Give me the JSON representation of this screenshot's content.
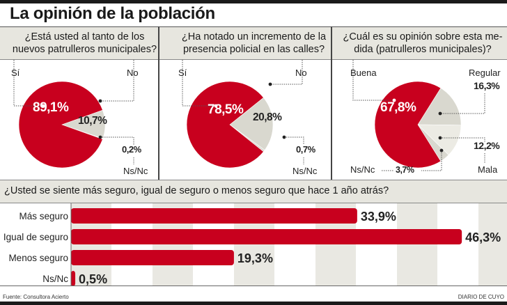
{
  "title": "La opinión de la población",
  "colors": {
    "red": "#c8001e",
    "gray": "#d9d8cf",
    "lightgray": "#ecebe4",
    "header_bg": "#e7e6df",
    "stripe": "#e9e8e2"
  },
  "chart_data": [
    {
      "type": "pie",
      "title": "¿Está usted al tanto de los nuevos patrulleros municipales?",
      "title_lines": [
        "¿Está usted al tanto de los",
        "nuevos patrulleros municipales?"
      ],
      "slices": [
        {
          "label": "Sí",
          "value": 89.1,
          "display": "89,1%"
        },
        {
          "label": "No",
          "value": 10.7,
          "display": "10,7%"
        },
        {
          "label": "Ns/Nc",
          "value": 0.2,
          "display": "0,2%"
        }
      ]
    },
    {
      "type": "pie",
      "title": "¿Ha notado un incremento de la presencia policial en las calles?",
      "title_lines": [
        "¿Ha notado un incremento de la",
        "presencia policial en las calles?"
      ],
      "slices": [
        {
          "label": "Sí",
          "value": 78.5,
          "display": "78,5%"
        },
        {
          "label": "No",
          "value": 20.8,
          "display": "20,8%"
        },
        {
          "label": "Ns/Nc",
          "value": 0.7,
          "display": "0,7%"
        }
      ]
    },
    {
      "type": "pie",
      "title": "¿Cuál es su opinión sobre esta medida (patrulleros municipales)?",
      "title_lines": [
        "¿Cuál es su opinión sobre esta me-",
        "dida (patrulleros municipales)?"
      ],
      "slices": [
        {
          "label": "Buena",
          "value": 67.8,
          "display": "67,8%"
        },
        {
          "label": "Regular",
          "value": 16.3,
          "display": "16,3%"
        },
        {
          "label": "Mala",
          "value": 12.2,
          "display": "12,2%"
        },
        {
          "label": "Ns/Nc",
          "value": 3.7,
          "display": "3,7%"
        }
      ]
    },
    {
      "type": "bar",
      "orientation": "horizontal",
      "title": "¿Usted se siente más seguro, igual de seguro o menos seguro que hace 1 año atrás?",
      "categories": [
        "Más seguro",
        "Igual de seguro",
        "Menos seguro",
        "Ns/Nc"
      ],
      "values": [
        33.9,
        46.3,
        19.3,
        0.5
      ],
      "display": [
        "33,9%",
        "46,3%",
        "19,3%",
        "0,5%"
      ],
      "xlim": [
        0,
        50
      ],
      "grid": "alternating vertical bands"
    }
  ],
  "footer": {
    "source": "Fuente: Consultora  Acierto",
    "brand": "DIARIO DE CUYO"
  }
}
